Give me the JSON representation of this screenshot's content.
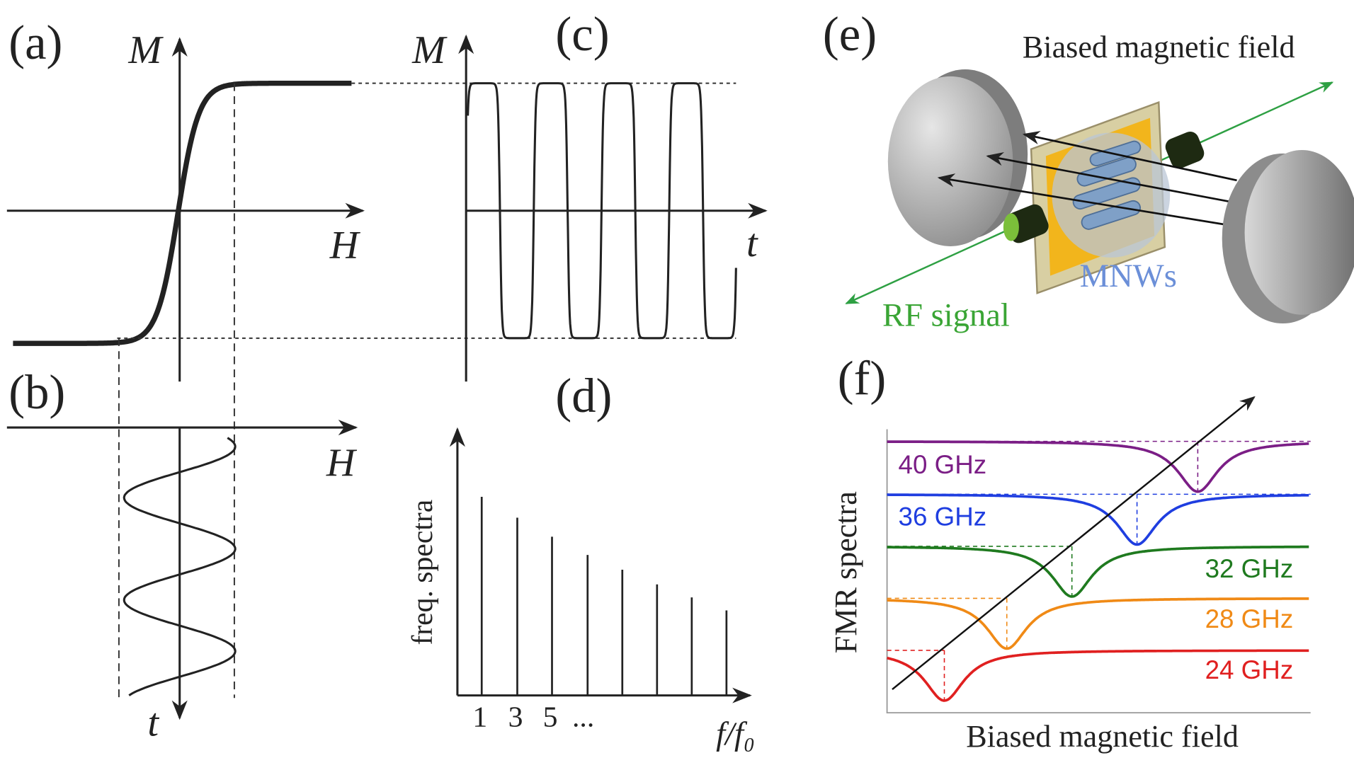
{
  "panels": {
    "a": {
      "label": "(a)",
      "y_axis": "M",
      "x_axis": "H"
    },
    "b": {
      "label": "(b)",
      "x_axis": "H",
      "y_axis": "t"
    },
    "c": {
      "label": "(c)",
      "y_axis": "M",
      "x_axis": "t"
    },
    "d": {
      "label": "(d)",
      "y_axis": "freq. spectra",
      "x_axis": "f/f₀",
      "ticks": [
        "1",
        "3",
        "5",
        "..."
      ]
    },
    "e": {
      "label": "(e)",
      "field": "Biased magnetic field",
      "wires": "MNWs",
      "signal": "RF signal"
    },
    "f": {
      "label": "(f)",
      "y_axis": "FMR spectra",
      "x_axis": "Biased magnetic field",
      "curves": [
        "40 GHz",
        "36 GHz",
        "32 GHz",
        "28 GHz",
        "24 GHz"
      ]
    }
  }
}
